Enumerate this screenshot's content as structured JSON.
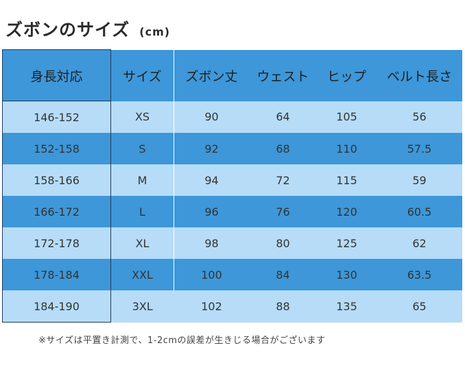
{
  "header": {
    "title": "ズボンのサイズ",
    "unit": "(cm)"
  },
  "table": {
    "columns": [
      "身長対応",
      "サイズ",
      "ズボン丈",
      "ウェスト",
      "ヒップ",
      "ベルト長さ"
    ],
    "rows": [
      [
        "146-152",
        "XS",
        "90",
        "64",
        "105",
        "56"
      ],
      [
        "152-158",
        "S",
        "92",
        "68",
        "110",
        "57.5"
      ],
      [
        "158-166",
        "M",
        "94",
        "72",
        "115",
        "59"
      ],
      [
        "166-172",
        "L",
        "96",
        "76",
        "120",
        "60.5"
      ],
      [
        "172-178",
        "XL",
        "98",
        "80",
        "125",
        "62"
      ],
      [
        "178-184",
        "XXL",
        "100",
        "84",
        "130",
        "63.5"
      ],
      [
        "184-190",
        "3XL",
        "102",
        "88",
        "135",
        "65"
      ]
    ]
  },
  "footer": {
    "note": "※サイズは平置き計測で、1-2cmの誤差が生きじる場合がございます"
  },
  "colors": {
    "header_bg": "#3d97d9",
    "row_light": "#b6dcf8",
    "row_dark": "#3d97d9",
    "border": "#1e3a57"
  }
}
